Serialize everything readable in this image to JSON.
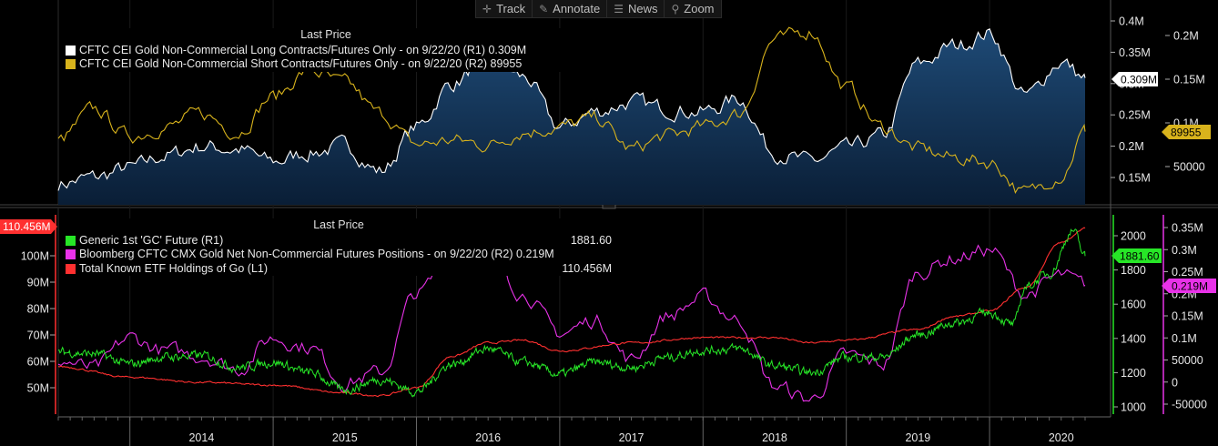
{
  "toolbar": {
    "track": "Track",
    "annotate": "Annotate",
    "news": "News",
    "zoom": "Zoom"
  },
  "top_legend": {
    "title": "Last Price",
    "items": [
      {
        "label": "CFTC CEI Gold Non-Commercial Long Contracts/Futures Only -  on 9/22/20  (R1)  0.309M",
        "color": "#ffffff"
      },
      {
        "label": "CFTC CEI Gold Non-Commercial Short Contracts/Futures Only -  on 9/22/20  (R2)  89955",
        "color": "#d8b31c"
      }
    ]
  },
  "bottom_legend": {
    "title": "Last Price",
    "items": [
      {
        "label": "Generic 1st 'GC' Future  (R1)",
        "value": "1881.60",
        "color": "#27e627"
      },
      {
        "label": "Bloomberg CFTC CMX Gold Net Non-Commercial Futures Positions -  on 9/22/20  (R2) 0.219M",
        "value": "",
        "color": "#e832e8"
      },
      {
        "label": "Total Known ETF Holdings of Go  (L1)",
        "value": "110.456M",
        "color": "#ff3030"
      }
    ]
  },
  "badges": {
    "top_long": "0.309M",
    "top_short": "89955",
    "gold_price": "1881.60",
    "net_positions": "0.219M",
    "etf": "110.456M"
  },
  "x_years": [
    "2014",
    "2015",
    "2016",
    "2017",
    "2018",
    "2019",
    "2020"
  ],
  "top_axes": {
    "r1_ticks": [
      "0.15M",
      "0.2M",
      "0.25M",
      "0.3M",
      "0.35M",
      "0.4M"
    ],
    "r2_ticks": [
      "50000",
      "0.1M",
      "0.15M",
      "0.2M"
    ]
  },
  "bottom_axes": {
    "l1_ticks": [
      "50M",
      "60M",
      "70M",
      "80M",
      "90M",
      "100M"
    ],
    "r1_ticks": [
      "1000",
      "1200",
      "1400",
      "1600",
      "1800",
      "2000"
    ],
    "r2_ticks": [
      "-50000",
      "0",
      "50000",
      "0.1M",
      "0.15M",
      "0.2M",
      "0.25M",
      "0.3M",
      "0.35M"
    ]
  },
  "chart_data": [
    {
      "type": "area",
      "title": "Last Price",
      "x_range": [
        "2013-07",
        "2020-09"
      ],
      "grid": false,
      "legend_placement": "top-left",
      "series": [
        {
          "name": "CFTC CEI Gold Non-Commercial Long Contracts/Futures Only -  on 9/22/20  (R1)",
          "axis": "R1",
          "style": "area",
          "last": "0.309M",
          "x": [
            "2013-07",
            "2013-10",
            "2014-01",
            "2014-04",
            "2014-07",
            "2014-10",
            "2015-01",
            "2015-04",
            "2015-07",
            "2015-10",
            "2016-01",
            "2016-04",
            "2016-07",
            "2016-10",
            "2017-01",
            "2017-04",
            "2017-07",
            "2017-10",
            "2018-01",
            "2018-04",
            "2018-07",
            "2018-10",
            "2019-01",
            "2019-04",
            "2019-07",
            "2019-10",
            "2020-01",
            "2020-04",
            "2020-07",
            "2020-09"
          ],
          "y": [
            140000,
            150000,
            165000,
            185000,
            200000,
            195000,
            175000,
            190000,
            200000,
            160000,
            230000,
            300000,
            345000,
            310000,
            230000,
            255000,
            270000,
            260000,
            255000,
            275000,
            190000,
            175000,
            195000,
            215000,
            330000,
            360000,
            380000,
            280000,
            335000,
            309000
          ]
        },
        {
          "name": "CFTC CEI Gold Non-Commercial Short Contracts/Futures Only -  on 9/22/20  (R2)",
          "axis": "R2",
          "style": "line",
          "last": "89955",
          "x": [
            "2013-07",
            "2013-10",
            "2014-01",
            "2014-04",
            "2014-07",
            "2014-10",
            "2015-01",
            "2015-04",
            "2015-07",
            "2015-10",
            "2016-01",
            "2016-04",
            "2016-07",
            "2016-10",
            "2017-01",
            "2017-04",
            "2017-07",
            "2017-10",
            "2018-01",
            "2018-04",
            "2018-07",
            "2018-10",
            "2019-01",
            "2019-04",
            "2019-07",
            "2019-10",
            "2020-01",
            "2020-04",
            "2020-07",
            "2020-09"
          ],
          "y": [
            80000,
            115000,
            85000,
            95000,
            110000,
            90000,
            130000,
            160000,
            145000,
            110000,
            75000,
            80000,
            75000,
            90000,
            95000,
            105000,
            70000,
            85000,
            95000,
            110000,
            195000,
            205000,
            140000,
            95000,
            70000,
            60000,
            55000,
            20000,
            40000,
            89955
          ]
        }
      ]
    },
    {
      "type": "line",
      "title": "Last Price",
      "x_range": [
        "2013-07",
        "2020-09"
      ],
      "grid": false,
      "legend_placement": "top-left",
      "series": [
        {
          "name": "Generic 1st 'GC' Future  (R1)",
          "axis": "R1",
          "last": "1881.60",
          "x": [
            "2013-07",
            "2013-10",
            "2014-01",
            "2014-04",
            "2014-07",
            "2014-10",
            "2015-01",
            "2015-04",
            "2015-07",
            "2015-10",
            "2016-01",
            "2016-04",
            "2016-07",
            "2016-10",
            "2017-01",
            "2017-04",
            "2017-07",
            "2017-10",
            "2018-01",
            "2018-04",
            "2018-07",
            "2018-10",
            "2019-01",
            "2019-04",
            "2019-07",
            "2019-10",
            "2020-01",
            "2020-03",
            "2020-04",
            "2020-06",
            "2020-08",
            "2020-09"
          ],
          "y": [
            1320,
            1310,
            1250,
            1290,
            1300,
            1230,
            1260,
            1200,
            1100,
            1160,
            1090,
            1250,
            1340,
            1260,
            1190,
            1260,
            1230,
            1290,
            1330,
            1340,
            1240,
            1200,
            1290,
            1290,
            1420,
            1490,
            1550,
            1480,
            1700,
            1780,
            2030,
            1881.6
          ]
        },
        {
          "name": "Bloomberg CFTC CMX Gold Net Non-Commercial Futures Positions -  on 9/22/20  (R2)",
          "axis": "R2",
          "last": "0.219M",
          "x": [
            "2013-07",
            "2013-10",
            "2014-01",
            "2014-04",
            "2014-07",
            "2014-10",
            "2015-01",
            "2015-04",
            "2015-07",
            "2015-10",
            "2016-01",
            "2016-04",
            "2016-07",
            "2016-10",
            "2017-01",
            "2017-04",
            "2017-07",
            "2017-10",
            "2018-01",
            "2018-04",
            "2018-07",
            "2018-10",
            "2019-01",
            "2019-04",
            "2019-07",
            "2019-10",
            "2020-01",
            "2020-04",
            "2020-07",
            "2020-09"
          ],
          "y": [
            50000,
            30000,
            100000,
            70000,
            60000,
            30000,
            100000,
            80000,
            0,
            20000,
            200000,
            280000,
            310000,
            200000,
            110000,
            140000,
            50000,
            150000,
            190000,
            140000,
            -10000,
            -40000,
            60000,
            40000,
            250000,
            280000,
            300000,
            200000,
            240000,
            219000
          ]
        },
        {
          "name": "Total Known ETF Holdings of Go  (L1)",
          "axis": "L1",
          "last": "110.456M",
          "x": [
            "2013-07",
            "2014-01",
            "2014-07",
            "2015-01",
            "2015-07",
            "2015-10",
            "2016-01",
            "2016-04",
            "2016-07",
            "2016-10",
            "2017-01",
            "2017-07",
            "2018-01",
            "2018-07",
            "2018-10",
            "2019-01",
            "2019-07",
            "2019-10",
            "2020-01",
            "2020-04",
            "2020-07",
            "2020-09"
          ],
          "y": [
            58000000,
            54000000,
            52000000,
            51000000,
            48000000,
            47000000,
            50000000,
            62000000,
            67000000,
            68000000,
            64000000,
            67000000,
            69000000,
            69000000,
            67000000,
            68000000,
            72000000,
            77000000,
            79000000,
            88000000,
            105000000,
            110456000
          ]
        }
      ]
    }
  ]
}
